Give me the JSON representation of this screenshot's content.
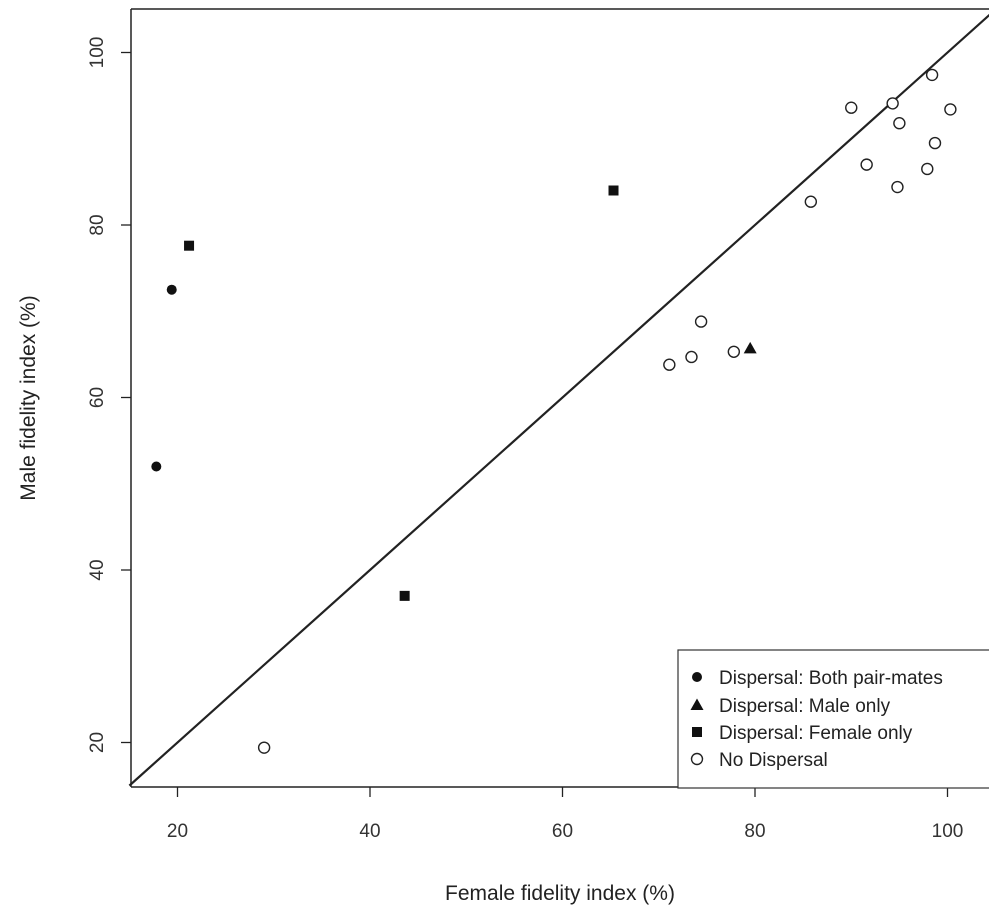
{
  "chart_data": {
    "type": "scatter",
    "title": "",
    "xlabel": "Female fidelity index (%)",
    "ylabel": "Male fidelity index (%)",
    "xlim": [
      15,
      105
    ],
    "ylim": [
      15,
      105
    ],
    "x_ticks": [
      "20",
      "40",
      "60",
      "80",
      "100"
    ],
    "y_ticks": [
      "20",
      "40",
      "60",
      "80",
      "100"
    ],
    "grid": false,
    "legend_position": "bottom-right",
    "reference_line": "y = x",
    "series": [
      {
        "name": "Dispersal: Both pair-mates",
        "marker": "filled-circle",
        "points": [
          [
            19.4,
            72.5
          ],
          [
            17.8,
            52.0
          ]
        ]
      },
      {
        "name": "Dispersal: Male only",
        "marker": "filled-triangle",
        "points": [
          [
            79.5,
            65.7
          ]
        ]
      },
      {
        "name": "Dispersal: Female only",
        "marker": "filled-square",
        "points": [
          [
            21.2,
            77.6
          ],
          [
            65.3,
            84.0
          ],
          [
            43.6,
            37.0
          ]
        ]
      },
      {
        "name": "No Dispersal",
        "marker": "open-circle",
        "points": [
          [
            29.0,
            19.4
          ],
          [
            71.1,
            63.8
          ],
          [
            73.4,
            64.7
          ],
          [
            74.4,
            68.8
          ],
          [
            77.8,
            65.3
          ],
          [
            85.8,
            82.7
          ],
          [
            90.0,
            93.6
          ],
          [
            91.6,
            87.0
          ],
          [
            94.3,
            94.1
          ],
          [
            94.8,
            84.4
          ],
          [
            95.0,
            91.8
          ],
          [
            97.9,
            86.5
          ],
          [
            98.4,
            97.4
          ],
          [
            98.7,
            89.5
          ],
          [
            100.3,
            93.4
          ]
        ]
      }
    ]
  }
}
